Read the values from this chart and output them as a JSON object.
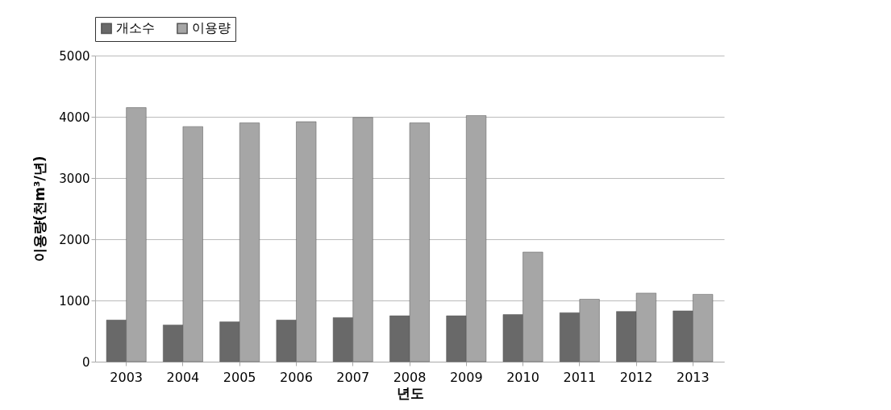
{
  "chart_data": {
    "type": "bar",
    "xlabel": "년도",
    "ylabel": "이용량(천m³/년)",
    "categories": [
      "2003",
      "2004",
      "2005",
      "2006",
      "2007",
      "2008",
      "2009",
      "2010",
      "2011",
      "2012",
      "2013"
    ],
    "series": [
      {
        "name": "개소수",
        "color": "#696969",
        "values": [
          680,
          600,
          650,
          680,
          720,
          750,
          750,
          770,
          800,
          820,
          830
        ]
      },
      {
        "name": "이용량",
        "color": "#a6a6a6",
        "values": [
          4150,
          3840,
          3900,
          3920,
          3990,
          3900,
          4020,
          1790,
          1020,
          1120,
          1100
        ]
      }
    ],
    "ylim": [
      0,
      5000
    ],
    "yticks": [
      0,
      1000,
      2000,
      3000,
      4000,
      5000
    ],
    "grid": "y",
    "legend": "top"
  }
}
